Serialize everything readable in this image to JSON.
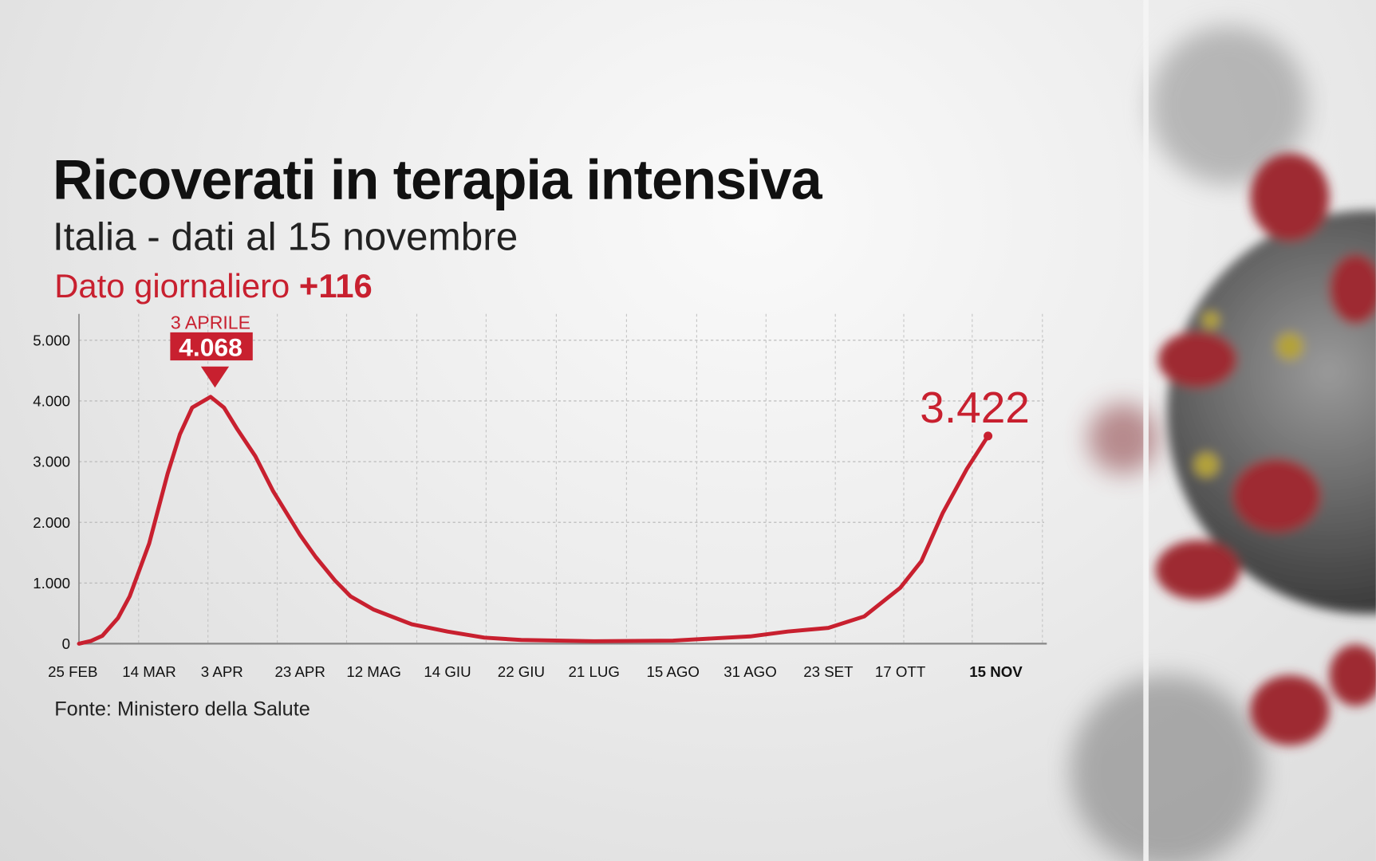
{
  "header": {
    "title": "Ricoverati in terapia intensiva",
    "subtitle": "Italia - dati al 15 novembre",
    "daily_label": "Dato giornaliero",
    "daily_value": "+116"
  },
  "footer": {
    "source": "Fonte: Ministero della Salute"
  },
  "colors": {
    "accent": "#c8202f",
    "text": "#111111",
    "grid": "#bdbdbd"
  },
  "chart_data": {
    "type": "line",
    "title": "Ricoverati in terapia intensiva",
    "xlabel": "",
    "ylabel": "",
    "ylim": [
      0,
      5000
    ],
    "y_ticks": [
      0,
      1000,
      2000,
      3000,
      4000,
      5000
    ],
    "y_tick_labels": [
      "0",
      "1.000",
      "2.000",
      "3.000",
      "4.000",
      "5.000"
    ],
    "x_tick_labels": [
      "25 FEB",
      "14 MAR",
      "3 APR",
      "23 APR",
      "12 MAG",
      "14 GIU",
      "22 GIU",
      "21 LUG",
      "15 AGO",
      "31 AGO",
      "23 SET",
      "17 OTT",
      "15 NOV"
    ],
    "x_tick_dates": [
      "2020-02-25",
      "2020-03-14",
      "2020-04-03",
      "2020-04-23",
      "2020-05-12",
      "2020-06-14",
      "2020-06-22",
      "2020-07-21",
      "2020-08-15",
      "2020-08-31",
      "2020-09-23",
      "2020-10-17",
      "2020-11-15"
    ],
    "grid": true,
    "color": "#c8202f",
    "series": [
      {
        "points": [
          [
            "2020-02-25",
            0
          ],
          [
            "2020-02-28",
            43
          ],
          [
            "2020-03-02",
            130
          ],
          [
            "2020-03-06",
            420
          ],
          [
            "2020-03-09",
            780
          ],
          [
            "2020-03-14",
            1650
          ],
          [
            "2020-03-20",
            2800
          ],
          [
            "2020-03-24",
            3450
          ],
          [
            "2020-03-28",
            3890
          ],
          [
            "2020-04-03",
            4068
          ],
          [
            "2020-04-06",
            3890
          ],
          [
            "2020-04-09",
            3530
          ],
          [
            "2020-04-13",
            3090
          ],
          [
            "2020-04-17",
            2510
          ],
          [
            "2020-04-23",
            1790
          ],
          [
            "2020-04-27",
            1430
          ],
          [
            "2020-05-02",
            1040
          ],
          [
            "2020-05-06",
            780
          ],
          [
            "2020-05-12",
            560
          ],
          [
            "2020-05-29",
            320
          ],
          [
            "2020-06-14",
            200
          ],
          [
            "2020-06-18",
            100
          ],
          [
            "2020-06-22",
            60
          ],
          [
            "2020-07-21",
            40
          ],
          [
            "2020-08-15",
            50
          ],
          [
            "2020-08-31",
            120
          ],
          [
            "2020-09-11",
            200
          ],
          [
            "2020-09-23",
            260
          ],
          [
            "2020-10-05",
            450
          ],
          [
            "2020-10-17",
            920
          ],
          [
            "2020-10-24",
            1360
          ],
          [
            "2020-10-31",
            2150
          ],
          [
            "2020-11-08",
            2880
          ],
          [
            "2020-11-15",
            3422
          ]
        ]
      }
    ],
    "annotations": [
      {
        "date_label": "3 APRILE",
        "value_label": "4.068",
        "date": "2020-04-03",
        "value": 4068
      },
      {
        "value_label": "3.422",
        "date": "2020-11-15",
        "value": 3422
      }
    ]
  }
}
